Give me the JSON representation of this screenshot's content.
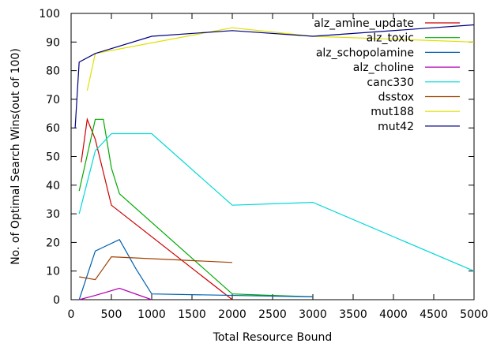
{
  "chart_data": {
    "type": "line",
    "title": "",
    "xlabel": "Total Resource Bound",
    "ylabel": "No. of Optimal Search Wins(out of 100)",
    "xlim": [
      0,
      5000
    ],
    "ylim": [
      0,
      100
    ],
    "xticks": [
      0,
      500,
      1000,
      1500,
      2000,
      2500,
      3000,
      3500,
      4000,
      4500,
      5000
    ],
    "yticks": [
      0,
      10,
      20,
      30,
      40,
      50,
      60,
      70,
      80,
      90,
      100
    ],
    "grid": false,
    "legend": "top-right",
    "series": [
      {
        "name": "alz_amine_update",
        "color": "#cc0000",
        "points": [
          [
            125,
            48
          ],
          [
            200,
            63
          ],
          [
            300,
            56
          ],
          [
            500,
            33
          ],
          [
            2000,
            0
          ]
        ]
      },
      {
        "name": "alz_toxic",
        "color": "#00aa00",
        "points": [
          [
            100,
            38
          ],
          [
            300,
            63
          ],
          [
            400,
            63
          ],
          [
            500,
            46
          ],
          [
            600,
            37
          ],
          [
            2000,
            2
          ],
          [
            2500,
            1.5
          ],
          [
            3000,
            1
          ]
        ]
      },
      {
        "name": "alz_schopolamine",
        "color": "#0060b0",
        "points": [
          [
            100,
            0
          ],
          [
            300,
            17
          ],
          [
            600,
            21
          ],
          [
            800,
            11
          ],
          [
            1000,
            2
          ],
          [
            3000,
            1
          ]
        ]
      },
      {
        "name": "alz_choline",
        "color": "#b000b0",
        "points": [
          [
            100,
            0
          ],
          [
            300,
            1.5
          ],
          [
            600,
            4
          ],
          [
            1000,
            0
          ]
        ]
      },
      {
        "name": "canc330",
        "color": "#00d8d8",
        "points": [
          [
            100,
            30
          ],
          [
            300,
            52
          ],
          [
            500,
            58
          ],
          [
            1000,
            58
          ],
          [
            2000,
            33
          ],
          [
            3000,
            34
          ],
          [
            5000,
            10
          ]
        ]
      },
      {
        "name": "dsstox",
        "color": "#a04000",
        "points": [
          [
            100,
            8
          ],
          [
            300,
            7
          ],
          [
            500,
            15
          ],
          [
            2000,
            13
          ]
        ]
      },
      {
        "name": "mut188",
        "color": "#e0e000",
        "points": [
          [
            200,
            73
          ],
          [
            300,
            86
          ],
          [
            2000,
            95
          ],
          [
            3000,
            92
          ],
          [
            5000,
            90
          ]
        ]
      },
      {
        "name": "mut42",
        "color": "#000080",
        "points": [
          [
            50,
            60
          ],
          [
            100,
            83
          ],
          [
            300,
            86
          ],
          [
            1000,
            92
          ],
          [
            2000,
            94
          ],
          [
            3000,
            92
          ],
          [
            5000,
            96
          ]
        ]
      }
    ]
  }
}
